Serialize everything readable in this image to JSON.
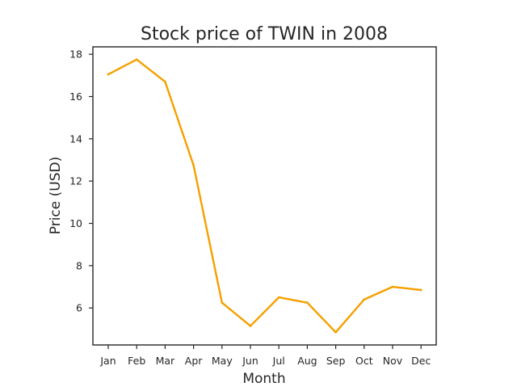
{
  "chart_data": {
    "type": "line",
    "title": "Stock price of TWIN in 2008",
    "xlabel": "Month",
    "ylabel": "Price (USD)",
    "categories": [
      "Jan",
      "Feb",
      "Mar",
      "Apr",
      "May",
      "Jun",
      "Jul",
      "Aug",
      "Sep",
      "Oct",
      "Nov",
      "Dec"
    ],
    "series": [
      {
        "values": [
          17.05,
          17.75,
          16.7,
          12.75,
          6.25,
          5.15,
          6.5,
          6.25,
          4.85,
          6.4,
          7.0,
          6.85
        ],
        "color": "#f5a000"
      }
    ],
    "yticks": [
      6,
      8,
      10,
      12,
      14,
      16,
      18
    ],
    "ylim": [
      4.25,
      18.35
    ],
    "grid": false,
    "legend": "none"
  }
}
